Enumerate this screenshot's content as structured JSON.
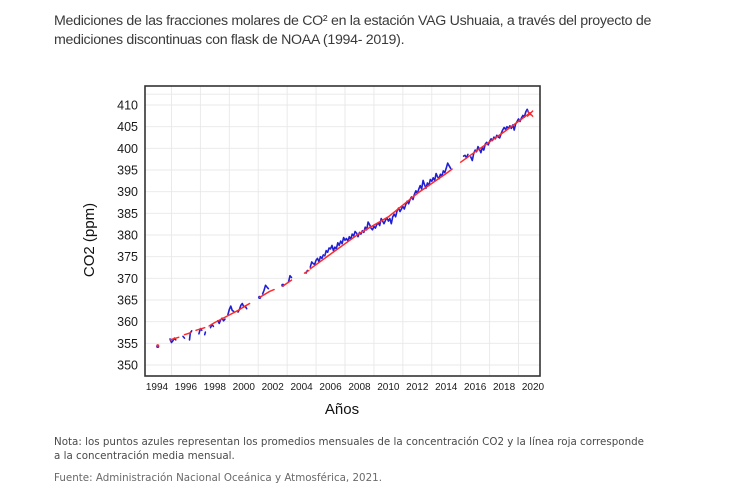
{
  "header": {
    "title_line1": "Mediciones de las fracciones molares de CO² en la estación VAG Ushuaia, a través del proyecto de",
    "title_line2": "mediciones discontinuas con flask de NOAA (1994- 2019)."
  },
  "footer": {
    "note_line1": "Nota: los puntos azules representan los promedios mensuales de la concentración CO2 y la línea roja corresponde",
    "note_line2": "a la concentración media mensual.",
    "source": "Fuente: Administración Nacional Oceánica y Atmosférica, 2021."
  },
  "chart_data": {
    "type": "line",
    "title": "",
    "xlabel": "Años",
    "ylabel": "CO2 (ppm)",
    "xlim": [
      1993.0,
      2020.5
    ],
    "ylim": [
      348,
      412
    ],
    "x_ticks": [
      "1994",
      "1996",
      "1998",
      "2000",
      "2002",
      "2004",
      "2006",
      "2008",
      "2010",
      "2012",
      "2014",
      "2016",
      "2018",
      "2020"
    ],
    "y_ticks": [
      "350",
      "355",
      "360",
      "365",
      "370",
      "375",
      "380",
      "385",
      "390",
      "395",
      "400",
      "405",
      "410"
    ],
    "grid": true,
    "colors": {
      "monthly": "#1f1fd6",
      "trend": "#ff2a2a",
      "axis": "#333333",
      "grid": "#e8e8e8"
    },
    "series": [
      {
        "name": "promedios mensuales",
        "color": "blue",
        "segments": [
          [
            [
              1994.05,
              354.3
            ]
          ],
          [
            [
              1994.9,
              356.0
            ],
            [
              1995.0,
              355.2
            ],
            [
              1995.1,
              355.6
            ],
            [
              1995.2,
              356.2
            ],
            [
              1995.3,
              355.8
            ]
          ],
          [
            [
              1995.8,
              356.6
            ],
            [
              1995.9,
              356.2
            ]
          ],
          [
            [
              1996.25,
              355.8
            ],
            [
              1996.3,
              357.4
            ],
            [
              1996.4,
              357.9
            ]
          ],
          [
            [
              1996.9,
              357.2
            ],
            [
              1997.0,
              358.4
            ],
            [
              1997.1,
              358.0
            ]
          ],
          [
            [
              1997.3,
              357.0
            ],
            [
              1997.35,
              357.6
            ]
          ],
          [
            [
              1997.7,
              358.6
            ],
            [
              1997.8,
              359.4
            ],
            [
              1997.9,
              358.9
            ]
          ],
          [
            [
              1998.2,
              360.2
            ],
            [
              1998.3,
              359.6
            ],
            [
              1998.4,
              360.4
            ],
            [
              1998.5,
              360.8
            ],
            [
              1998.6,
              360.2
            ],
            [
              1998.7,
              360.6
            ]
          ],
          [
            [
              1998.9,
              361.6
            ],
            [
              1999.0,
              362.8
            ],
            [
              1999.1,
              363.6
            ],
            [
              1999.2,
              362.6
            ],
            [
              1999.3,
              362.4
            ]
          ],
          [
            [
              1999.6,
              362.2
            ],
            [
              1999.7,
              362.8
            ],
            [
              1999.8,
              363.8
            ],
            [
              1999.9,
              364.2
            ],
            [
              2000.0,
              363.4
            ],
            [
              2000.1,
              363.6
            ],
            [
              2000.2,
              363.0
            ]
          ],
          [
            [
              2001.1,
              365.6
            ]
          ],
          [
            [
              2001.3,
              366.4
            ],
            [
              2001.4,
              367.2
            ],
            [
              2001.5,
              368.4
            ],
            [
              2001.6,
              368.0
            ],
            [
              2001.7,
              367.6
            ]
          ],
          [
            [
              2002.7,
              368.4
            ]
          ],
          [
            [
              2003.1,
              369.2
            ],
            [
              2003.2,
              370.6
            ],
            [
              2003.3,
              370.2
            ]
          ],
          [
            [
              2004.3,
              371.2
            ],
            [
              2004.4,
              371.8
            ]
          ],
          [
            [
              2004.6,
              372.6
            ],
            [
              2004.7,
              373.8
            ],
            [
              2004.8,
              373.4
            ],
            [
              2004.9,
              373.2
            ],
            [
              2005.0,
              374.2
            ],
            [
              2005.1,
              374.6
            ],
            [
              2005.2,
              373.8
            ],
            [
              2005.3,
              375.0
            ],
            [
              2005.4,
              374.6
            ],
            [
              2005.5,
              375.4
            ]
          ],
          [
            [
              2005.6,
              375.2
            ],
            [
              2005.7,
              376.4
            ],
            [
              2005.8,
              376.0
            ],
            [
              2005.9,
              377.0
            ],
            [
              2006.0,
              376.8
            ],
            [
              2006.1,
              377.6
            ],
            [
              2006.2,
              376.4
            ],
            [
              2006.3,
              377.2
            ],
            [
              2006.4,
              376.8
            ],
            [
              2006.5,
              378.2
            ],
            [
              2006.6,
              377.6
            ],
            [
              2006.7,
              378.6
            ],
            [
              2006.8,
              378.0
            ],
            [
              2006.9,
              379.4
            ],
            [
              2007.0,
              378.8
            ],
            [
              2007.1,
              379.2
            ],
            [
              2007.2,
              378.6
            ],
            [
              2007.3,
              379.6
            ],
            [
              2007.4,
              379.0
            ],
            [
              2007.5,
              380.2
            ],
            [
              2007.6,
              379.8
            ],
            [
              2007.7,
              380.8
            ],
            [
              2007.8,
              380.4
            ],
            [
              2007.9,
              379.6
            ],
            [
              2008.0,
              380.6
            ],
            [
              2008.1,
              380.2
            ],
            [
              2008.2,
              381.0
            ],
            [
              2008.3,
              380.6
            ],
            [
              2008.4,
              381.8
            ],
            [
              2008.5,
              381.2
            ],
            [
              2008.6,
              383.0
            ],
            [
              2008.7,
              382.4
            ],
            [
              2008.8,
              381.6
            ],
            [
              2008.9,
              381.2
            ],
            [
              2009.0,
              382.0
            ],
            [
              2009.1,
              381.6
            ],
            [
              2009.2,
              382.4
            ],
            [
              2009.3,
              382.8
            ],
            [
              2009.4,
              382.2
            ],
            [
              2009.5,
              383.8
            ],
            [
              2009.6,
              383.2
            ],
            [
              2009.7,
              382.6
            ],
            [
              2009.8,
              383.4
            ],
            [
              2009.9,
              384.0
            ],
            [
              2010.0,
              383.2
            ],
            [
              2010.1,
              383.8
            ],
            [
              2010.2,
              382.6
            ],
            [
              2010.3,
              384.2
            ],
            [
              2010.4,
              384.8
            ],
            [
              2010.5,
              384.2
            ],
            [
              2010.6,
              385.6
            ],
            [
              2010.7,
              386.2
            ],
            [
              2010.8,
              385.4
            ],
            [
              2010.9,
              386.0
            ],
            [
              2011.0,
              386.6
            ],
            [
              2011.1,
              386.0
            ],
            [
              2011.2,
              387.0
            ],
            [
              2011.3,
              387.8
            ],
            [
              2011.4,
              387.2
            ],
            [
              2011.5,
              388.2
            ],
            [
              2011.6,
              388.8
            ],
            [
              2011.7,
              388.2
            ],
            [
              2011.8,
              389.4
            ],
            [
              2011.9,
              390.2
            ],
            [
              2012.0,
              389.6
            ],
            [
              2012.1,
              390.6
            ],
            [
              2012.2,
              391.4
            ],
            [
              2012.3,
              390.6
            ],
            [
              2012.4,
              392.6
            ],
            [
              2012.5,
              391.6
            ],
            [
              2012.6,
              390.8
            ],
            [
              2012.7,
              392.0
            ],
            [
              2012.8,
              391.4
            ],
            [
              2012.9,
              392.8
            ],
            [
              2013.0,
              392.4
            ],
            [
              2013.1,
              393.2
            ],
            [
              2013.2,
              392.6
            ],
            [
              2013.3,
              394.2
            ],
            [
              2013.4,
              393.4
            ],
            [
              2013.5,
              393.0
            ],
            [
              2013.6,
              394.0
            ],
            [
              2013.7,
              393.6
            ],
            [
              2013.8,
              394.8
            ],
            [
              2013.9,
              394.4
            ],
            [
              2014.0,
              395.4
            ],
            [
              2014.1,
              396.6
            ],
            [
              2014.2,
              396.0
            ],
            [
              2014.3,
              395.4
            ]
          ],
          [
            [
              2015.2,
              398.2
            ],
            [
              2015.3,
              398.4
            ],
            [
              2015.4,
              397.8
            ],
            [
              2015.5,
              398.6
            ]
          ],
          [
            [
              2015.7,
              398.0
            ],
            [
              2015.8,
              397.2
            ],
            [
              2015.9,
              398.8
            ],
            [
              2016.0,
              399.6
            ],
            [
              2016.1,
              399.2
            ],
            [
              2016.2,
              400.4
            ],
            [
              2016.3,
              399.8
            ],
            [
              2016.4,
              399.0
            ],
            [
              2016.5,
              400.2
            ],
            [
              2016.6,
              399.6
            ],
            [
              2016.7,
              401.0
            ],
            [
              2016.8,
              401.4
            ],
            [
              2016.9,
              400.8
            ],
            [
              2017.0,
              401.6
            ],
            [
              2017.1,
              402.2
            ],
            [
              2017.2,
              401.8
            ],
            [
              2017.3,
              402.6
            ],
            [
              2017.4,
              402.2
            ],
            [
              2017.5,
              403.0
            ],
            [
              2017.6,
              402.6
            ],
            [
              2017.7,
              402.4
            ],
            [
              2017.8,
              403.4
            ],
            [
              2017.9,
              404.2
            ],
            [
              2018.0,
              404.8
            ],
            [
              2018.1,
              404.4
            ],
            [
              2018.2,
              405.0
            ],
            [
              2018.3,
              404.6
            ],
            [
              2018.4,
              405.2
            ],
            [
              2018.5,
              404.6
            ],
            [
              2018.6,
              405.4
            ],
            [
              2018.7,
              404.2
            ],
            [
              2018.8,
              405.6
            ],
            [
              2018.9,
              406.2
            ],
            [
              2019.0,
              406.8
            ],
            [
              2019.1,
              406.2
            ],
            [
              2019.2,
              407.0
            ],
            [
              2019.3,
              407.6
            ],
            [
              2019.4,
              407.2
            ],
            [
              2019.5,
              408.4
            ],
            [
              2019.6,
              409.0
            ],
            [
              2019.7,
              408.2
            ],
            [
              2019.8,
              407.8
            ]
          ]
        ]
      },
      {
        "name": "concentración media mensual",
        "color": "red",
        "segments": [
          [
            [
              1994.05,
              354.5
            ]
          ],
          [
            [
              1994.9,
              355.8
            ],
            [
              1995.5,
              356.4
            ]
          ],
          [
            [
              1995.9,
              357.0
            ],
            [
              1996.3,
              357.4
            ]
          ],
          [
            [
              1996.7,
              358.0
            ],
            [
              1997.3,
              358.6
            ]
          ],
          [
            [
              1997.6,
              359.0
            ],
            [
              1998.0,
              359.8
            ],
            [
              1998.8,
              361.2
            ],
            [
              1999.6,
              362.6
            ],
            [
              2000.2,
              363.8
            ],
            [
              2000.4,
              364.2
            ]
          ],
          [
            [
              2001.1,
              365.6
            ],
            [
              2001.8,
              367.0
            ],
            [
              2002.1,
              367.4
            ]
          ],
          [
            [
              2002.7,
              368.2
            ],
            [
              2003.3,
              369.6
            ]
          ],
          [
            [
              2004.2,
              371.2
            ],
            [
              2004.5,
              371.8
            ]
          ],
          [
            [
              2004.6,
              372.2
            ],
            [
              2006.0,
              375.6
            ],
            [
              2008.0,
              380.4
            ],
            [
              2010.0,
              384.2
            ],
            [
              2012.0,
              389.6
            ],
            [
              2014.0,
              394.2
            ],
            [
              2014.4,
              395.2
            ]
          ],
          [
            [
              2015.0,
              396.8
            ],
            [
              2016.0,
              399.2
            ],
            [
              2018.0,
              403.8
            ],
            [
              2019.8,
              408.2
            ]
          ]
        ]
      }
    ],
    "end_marker": {
      "year": 2019.8,
      "value": 408.0
    }
  }
}
